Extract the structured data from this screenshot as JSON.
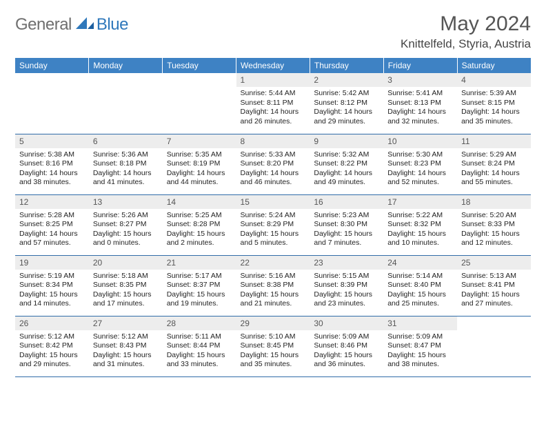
{
  "brand": {
    "part1": "General",
    "part2": "Blue"
  },
  "header": {
    "month_title": "May 2024",
    "location": "Knittelfeld, Styria, Austria"
  },
  "theme": {
    "header_bg": "#3e82c4",
    "header_fg": "#ffffff",
    "daynum_bg": "#ededed",
    "rule_color": "#2f6ba8",
    "text_color": "#222222",
    "title_color": "#555555",
    "logo_gray": "#6f6f6f",
    "logo_blue": "#2f78bb",
    "font_family": "Arial"
  },
  "weekdays": [
    "Sunday",
    "Monday",
    "Tuesday",
    "Wednesday",
    "Thursday",
    "Friday",
    "Saturday"
  ],
  "weeks": [
    [
      null,
      null,
      null,
      {
        "n": "1",
        "sr": "5:44 AM",
        "ss": "8:11 PM",
        "dl": "14 hours and 26 minutes."
      },
      {
        "n": "2",
        "sr": "5:42 AM",
        "ss": "8:12 PM",
        "dl": "14 hours and 29 minutes."
      },
      {
        "n": "3",
        "sr": "5:41 AM",
        "ss": "8:13 PM",
        "dl": "14 hours and 32 minutes."
      },
      {
        "n": "4",
        "sr": "5:39 AM",
        "ss": "8:15 PM",
        "dl": "14 hours and 35 minutes."
      }
    ],
    [
      {
        "n": "5",
        "sr": "5:38 AM",
        "ss": "8:16 PM",
        "dl": "14 hours and 38 minutes."
      },
      {
        "n": "6",
        "sr": "5:36 AM",
        "ss": "8:18 PM",
        "dl": "14 hours and 41 minutes."
      },
      {
        "n": "7",
        "sr": "5:35 AM",
        "ss": "8:19 PM",
        "dl": "14 hours and 44 minutes."
      },
      {
        "n": "8",
        "sr": "5:33 AM",
        "ss": "8:20 PM",
        "dl": "14 hours and 46 minutes."
      },
      {
        "n": "9",
        "sr": "5:32 AM",
        "ss": "8:22 PM",
        "dl": "14 hours and 49 minutes."
      },
      {
        "n": "10",
        "sr": "5:30 AM",
        "ss": "8:23 PM",
        "dl": "14 hours and 52 minutes."
      },
      {
        "n": "11",
        "sr": "5:29 AM",
        "ss": "8:24 PM",
        "dl": "14 hours and 55 minutes."
      }
    ],
    [
      {
        "n": "12",
        "sr": "5:28 AM",
        "ss": "8:25 PM",
        "dl": "14 hours and 57 minutes."
      },
      {
        "n": "13",
        "sr": "5:26 AM",
        "ss": "8:27 PM",
        "dl": "15 hours and 0 minutes."
      },
      {
        "n": "14",
        "sr": "5:25 AM",
        "ss": "8:28 PM",
        "dl": "15 hours and 2 minutes."
      },
      {
        "n": "15",
        "sr": "5:24 AM",
        "ss": "8:29 PM",
        "dl": "15 hours and 5 minutes."
      },
      {
        "n": "16",
        "sr": "5:23 AM",
        "ss": "8:30 PM",
        "dl": "15 hours and 7 minutes."
      },
      {
        "n": "17",
        "sr": "5:22 AM",
        "ss": "8:32 PM",
        "dl": "15 hours and 10 minutes."
      },
      {
        "n": "18",
        "sr": "5:20 AM",
        "ss": "8:33 PM",
        "dl": "15 hours and 12 minutes."
      }
    ],
    [
      {
        "n": "19",
        "sr": "5:19 AM",
        "ss": "8:34 PM",
        "dl": "15 hours and 14 minutes."
      },
      {
        "n": "20",
        "sr": "5:18 AM",
        "ss": "8:35 PM",
        "dl": "15 hours and 17 minutes."
      },
      {
        "n": "21",
        "sr": "5:17 AM",
        "ss": "8:37 PM",
        "dl": "15 hours and 19 minutes."
      },
      {
        "n": "22",
        "sr": "5:16 AM",
        "ss": "8:38 PM",
        "dl": "15 hours and 21 minutes."
      },
      {
        "n": "23",
        "sr": "5:15 AM",
        "ss": "8:39 PM",
        "dl": "15 hours and 23 minutes."
      },
      {
        "n": "24",
        "sr": "5:14 AM",
        "ss": "8:40 PM",
        "dl": "15 hours and 25 minutes."
      },
      {
        "n": "25",
        "sr": "5:13 AM",
        "ss": "8:41 PM",
        "dl": "15 hours and 27 minutes."
      }
    ],
    [
      {
        "n": "26",
        "sr": "5:12 AM",
        "ss": "8:42 PM",
        "dl": "15 hours and 29 minutes."
      },
      {
        "n": "27",
        "sr": "5:12 AM",
        "ss": "8:43 PM",
        "dl": "15 hours and 31 minutes."
      },
      {
        "n": "28",
        "sr": "5:11 AM",
        "ss": "8:44 PM",
        "dl": "15 hours and 33 minutes."
      },
      {
        "n": "29",
        "sr": "5:10 AM",
        "ss": "8:45 PM",
        "dl": "15 hours and 35 minutes."
      },
      {
        "n": "30",
        "sr": "5:09 AM",
        "ss": "8:46 PM",
        "dl": "15 hours and 36 minutes."
      },
      {
        "n": "31",
        "sr": "5:09 AM",
        "ss": "8:47 PM",
        "dl": "15 hours and 38 minutes."
      },
      null
    ]
  ],
  "labels": {
    "sunrise": "Sunrise:",
    "sunset": "Sunset:",
    "daylight": "Daylight:"
  }
}
